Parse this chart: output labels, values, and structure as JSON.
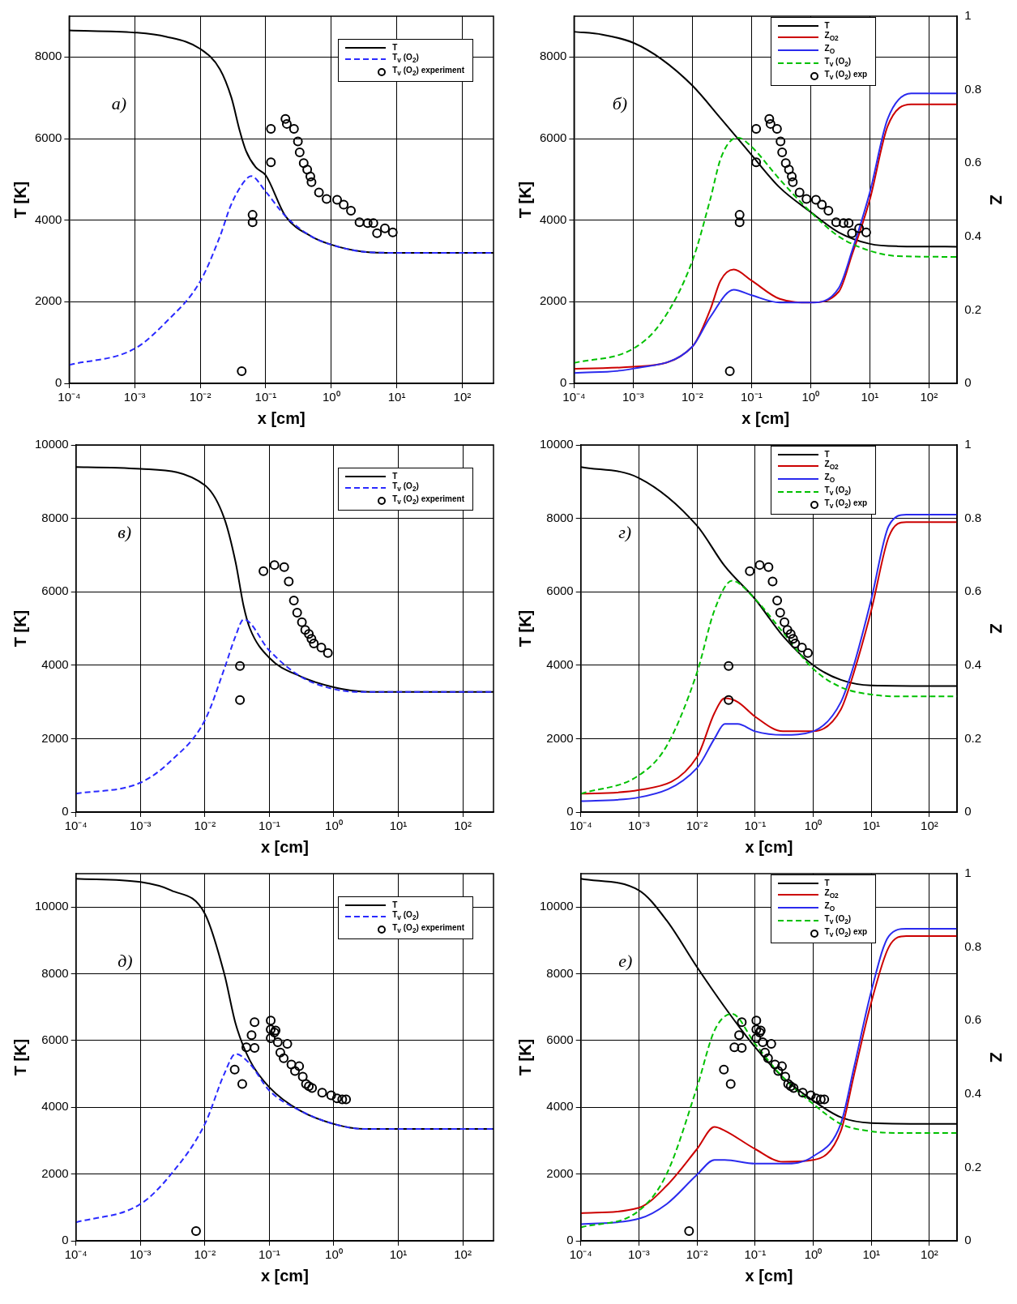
{
  "chart_data": [
    {
      "type": "line",
      "xlabel": "x [cm]",
      "ylabel": "T [K]",
      "log": "x",
      "grid": true,
      "legend": "top right",
      "annotations": [
        "а)"
      ],
      "xlim": [
        0.0001,
        300
      ],
      "xticks": [
        {
          "value": 0.0001,
          "label": "10⁻⁴"
        },
        {
          "value": 0.001,
          "label": "10⁻³"
        },
        {
          "value": 0.01,
          "label": "10⁻²"
        },
        {
          "value": 0.1,
          "label": "10⁻¹"
        },
        {
          "value": 1,
          "label": "10⁰"
        },
        {
          "value": 10,
          "label": "10¹"
        },
        {
          "value": 100,
          "label": "10²"
        }
      ],
      "ylim": [
        0,
        9000
      ],
      "yticks": [
        0,
        2000,
        4000,
        6000,
        8000
      ],
      "series": [
        {
          "name": "T",
          "type": "line",
          "color": "#000000",
          "line_style": "solid",
          "marker": "none",
          "x": [
            0.0001,
            0.001,
            0.003,
            0.01,
            0.02,
            0.03,
            0.04,
            0.05,
            0.07,
            0.1,
            0.2,
            0.5,
            1,
            3,
            10,
            300
          ],
          "values": [
            8650,
            8600,
            8500,
            8200,
            7700,
            7000,
            6200,
            5700,
            5300,
            5100,
            4100,
            3600,
            3400,
            3230,
            3200,
            3200
          ]
        },
        {
          "name": "T$_{v}$ (O$_{2}$)",
          "color": "#2a2aff",
          "line_style": "dashed",
          "marker": "none",
          "x": [
            0.0001,
            0.001,
            0.003,
            0.01,
            0.02,
            0.03,
            0.05,
            0.06,
            0.1,
            0.2,
            0.5,
            1,
            3,
            10,
            300
          ],
          "values": [
            450,
            850,
            1500,
            2500,
            3600,
            4400,
            5000,
            5080,
            4700,
            4100,
            3600,
            3400,
            3230,
            3200,
            3200
          ]
        },
        {
          "name": "T$_{v}$ (O$_{2}$) experiment",
          "type": "scatter",
          "color": "#000000",
          "marker": "circle",
          "x": [
            0.043,
            0.063,
            0.063,
            0.12,
            0.12,
            0.2,
            0.21,
            0.27,
            0.31,
            0.33,
            0.38,
            0.43,
            0.48,
            0.5,
            0.65,
            0.85,
            1.23,
            1.55,
            2.0,
            2.7,
            3.6,
            4.4,
            5.0,
            6.6,
            8.7
          ],
          "values": [
            300,
            4130,
            3950,
            6240,
            5420,
            6480,
            6360,
            6240,
            5930,
            5660,
            5400,
            5240,
            5070,
            4930,
            4680,
            4520,
            4500,
            4380,
            4230,
            3950,
            3930,
            3930,
            3680,
            3800,
            3700
          ]
        }
      ]
    },
    {
      "type": "line",
      "xlabel": "x [cm]",
      "ylabel": "T [K]",
      "y2label": "Z",
      "log": "x",
      "grid": true,
      "legend": "top right",
      "annotations": [
        "б)"
      ],
      "xlim": [
        0.0001,
        300
      ],
      "xticks": [
        {
          "value": 0.0001,
          "label": "10⁻⁴"
        },
        {
          "value": 0.001,
          "label": "10⁻³"
        },
        {
          "value": 0.01,
          "label": "10⁻²"
        },
        {
          "value": 0.1,
          "label": "10⁻¹"
        },
        {
          "value": 1,
          "label": "10⁰"
        },
        {
          "value": 10,
          "label": "10¹"
        },
        {
          "value": 100,
          "label": "10²"
        }
      ],
      "ylim": [
        0,
        9000
      ],
      "yticks": [
        0,
        2000,
        4000,
        6000,
        8000
      ],
      "y2lim": [
        0,
        1
      ],
      "y2ticks": [
        0,
        0.2,
        0.4,
        0.6,
        0.8,
        1
      ],
      "series": [
        {
          "name": "T",
          "color": "#000000",
          "line_style": "solid",
          "marker": "none",
          "x": [
            0.0001,
            0.0003,
            0.001,
            0.003,
            0.01,
            0.03,
            0.1,
            0.3,
            1,
            3,
            10,
            30,
            300
          ],
          "values": [
            8620,
            8550,
            8350,
            7950,
            7300,
            6500,
            5600,
            4800,
            4200,
            3700,
            3420,
            3360,
            3350
          ]
        },
        {
          "name": "Z$_{O2}$",
          "axis": "y2",
          "color": "#cc0000",
          "line_style": "solid",
          "marker": "none",
          "x": [
            0.0001,
            0.001,
            0.01,
            0.02,
            0.03,
            0.05,
            0.1,
            0.3,
            1,
            3,
            5,
            10,
            20,
            50,
            300
          ],
          "values": [
            0.04,
            0.045,
            0.1,
            0.2,
            0.28,
            0.31,
            0.28,
            0.23,
            0.22,
            0.25,
            0.35,
            0.5,
            0.7,
            0.76,
            0.76
          ]
        },
        {
          "name": "Z$_{O}$",
          "axis": "y2",
          "color": "#2a2aee",
          "line_style": "solid",
          "marker": "none",
          "x": [
            0.0001,
            0.001,
            0.01,
            0.02,
            0.05,
            0.1,
            0.3,
            1,
            3,
            5,
            10,
            20,
            50,
            300
          ],
          "values": [
            0.028,
            0.04,
            0.1,
            0.18,
            0.255,
            0.24,
            0.22,
            0.22,
            0.26,
            0.36,
            0.52,
            0.72,
            0.79,
            0.79
          ]
        },
        {
          "name": "T$_{v}$ (O$_{2}$)",
          "color": "#00c000",
          "line_style": "dashed",
          "marker": "none",
          "x": [
            0.0001,
            0.001,
            0.003,
            0.01,
            0.02,
            0.03,
            0.05,
            0.06,
            0.1,
            0.3,
            1,
            3,
            10,
            30,
            300
          ],
          "values": [
            500,
            850,
            1500,
            3000,
            4500,
            5500,
            6000,
            6020,
            5800,
            5000,
            4200,
            3600,
            3250,
            3120,
            3100
          ]
        },
        {
          "name": "T$_{v}$ (O$_{2}$) exp",
          "type": "scatter",
          "color": "#000000",
          "marker": "circle",
          "x": [
            0.043,
            0.063,
            0.063,
            0.12,
            0.12,
            0.2,
            0.21,
            0.27,
            0.31,
            0.33,
            0.38,
            0.43,
            0.48,
            0.5,
            0.65,
            0.85,
            1.23,
            1.55,
            2.0,
            2.7,
            3.6,
            4.4,
            5.0,
            6.6,
            8.7
          ],
          "values": [
            300,
            4130,
            3950,
            6240,
            5420,
            6480,
            6360,
            6240,
            5930,
            5660,
            5400,
            5240,
            5070,
            4930,
            4680,
            4520,
            4500,
            4380,
            4230,
            3950,
            3930,
            3930,
            3680,
            3800,
            3700
          ]
        }
      ]
    },
    {
      "type": "line",
      "xlabel": "x [cm]",
      "ylabel": "T [K]",
      "log": "x",
      "grid": true,
      "legend": "top right",
      "annotations": [
        "в)"
      ],
      "xlim": [
        0.0001,
        300
      ],
      "xticks": [
        {
          "value": 0.0001,
          "label": "10⁻⁴"
        },
        {
          "value": 0.001,
          "label": "10⁻³"
        },
        {
          "value": 0.01,
          "label": "10⁻²"
        },
        {
          "value": 0.1,
          "label": "10⁻¹"
        },
        {
          "value": 1,
          "label": "10⁰"
        },
        {
          "value": 10,
          "label": "10¹"
        },
        {
          "value": 100,
          "label": "10²"
        }
      ],
      "ylim": [
        0,
        10000
      ],
      "yticks": [
        0,
        2000,
        4000,
        6000,
        8000,
        10000
      ],
      "series": [
        {
          "name": "T",
          "color": "#000000",
          "line_style": "solid",
          "marker": "none",
          "x": [
            0.0001,
            0.001,
            0.01,
            0.02,
            0.03,
            0.04,
            0.05,
            0.1,
            0.3,
            1,
            3,
            10,
            300
          ],
          "values": [
            9400,
            9350,
            8900,
            8000,
            6800,
            5600,
            5000,
            4200,
            3700,
            3400,
            3280,
            3270,
            3270
          ]
        },
        {
          "name": "T$_{v}$ (O$_{2}$)",
          "color": "#2a2aff",
          "line_style": "dashed",
          "marker": "none",
          "x": [
            0.0001,
            0.001,
            0.003,
            0.01,
            0.02,
            0.03,
            0.04,
            0.1,
            0.3,
            1,
            3,
            300
          ],
          "values": [
            500,
            800,
            1400,
            2500,
            3900,
            4800,
            5250,
            4400,
            3700,
            3350,
            3270,
            3270
          ]
        },
        {
          "name": "T$_{v}$ (O$_{2}$) experiment",
          "type": "scatter",
          "color": "#000000",
          "marker": "circle",
          "x": [
            0.035,
            0.035,
            0.081,
            0.12,
            0.17,
            0.2,
            0.24,
            0.27,
            0.32,
            0.36,
            0.41,
            0.45,
            0.49,
            0.64,
            0.81
          ],
          "values": [
            3980,
            3050,
            6560,
            6730,
            6670,
            6280,
            5760,
            5430,
            5170,
            4960,
            4850,
            4720,
            4590,
            4480,
            4330
          ]
        }
      ]
    },
    {
      "type": "line",
      "xlabel": "x [cm]",
      "ylabel": "T [K]",
      "y2label": "Z",
      "log": "x",
      "grid": true,
      "legend": "top right",
      "annotations": [
        "г)"
      ],
      "xlim": [
        0.0001,
        300
      ],
      "xticks": [
        {
          "value": 0.0001,
          "label": "10⁻⁴"
        },
        {
          "value": 0.001,
          "label": "10⁻³"
        },
        {
          "value": 0.01,
          "label": "10⁻²"
        },
        {
          "value": 0.1,
          "label": "10⁻¹"
        },
        {
          "value": 1,
          "label": "10⁰"
        },
        {
          "value": 10,
          "label": "10¹"
        },
        {
          "value": 100,
          "label": "10²"
        }
      ],
      "ylim": [
        0,
        10000
      ],
      "yticks": [
        0,
        2000,
        4000,
        6000,
        8000,
        10000
      ],
      "y2lim": [
        0,
        1
      ],
      "y2ticks": [
        0,
        0.2,
        0.4,
        0.6,
        0.8,
        1
      ],
      "series": [
        {
          "name": "T",
          "color": "#000000",
          "line_style": "solid",
          "marker": "none",
          "x": [
            0.0001,
            0.001,
            0.01,
            0.03,
            0.1,
            0.3,
            1,
            3,
            10,
            300
          ],
          "values": [
            9400,
            9100,
            7800,
            6700,
            5800,
            4800,
            4000,
            3600,
            3450,
            3430
          ]
        },
        {
          "name": "Z$_{O2}$",
          "axis": "y2",
          "color": "#cc0000",
          "line_style": "solid",
          "marker": "none",
          "x": [
            0.0001,
            0.001,
            0.01,
            0.02,
            0.03,
            0.05,
            0.1,
            0.3,
            1,
            3,
            5,
            10,
            20,
            40,
            300
          ],
          "values": [
            0.05,
            0.06,
            0.15,
            0.27,
            0.31,
            0.3,
            0.26,
            0.22,
            0.22,
            0.28,
            0.38,
            0.55,
            0.75,
            0.79,
            0.79
          ]
        },
        {
          "name": "Z$_{O}$",
          "axis": "y2",
          "color": "#2a2aee",
          "line_style": "solid",
          "marker": "none",
          "x": [
            0.0001,
            0.001,
            0.01,
            0.02,
            0.03,
            0.05,
            0.1,
            0.3,
            1,
            3,
            5,
            10,
            20,
            40,
            300
          ],
          "values": [
            0.03,
            0.04,
            0.12,
            0.2,
            0.24,
            0.24,
            0.22,
            0.21,
            0.22,
            0.3,
            0.4,
            0.58,
            0.78,
            0.81,
            0.81
          ]
        },
        {
          "name": "T$_{v}$ (O$_{2}$)",
          "color": "#00c000",
          "line_style": "dashed",
          "marker": "none",
          "x": [
            0.0001,
            0.001,
            0.003,
            0.01,
            0.02,
            0.04,
            0.1,
            0.3,
            1,
            3,
            10,
            30,
            300
          ],
          "values": [
            500,
            1000,
            1800,
            3800,
            5500,
            6300,
            5800,
            4900,
            3900,
            3400,
            3200,
            3150,
            3150
          ]
        },
        {
          "name": "T$_{v}$ (O$_{2}$) exp",
          "type": "scatter",
          "color": "#000000",
          "marker": "circle",
          "x": [
            0.035,
            0.035,
            0.081,
            0.12,
            0.17,
            0.2,
            0.24,
            0.27,
            0.32,
            0.36,
            0.41,
            0.45,
            0.49,
            0.64,
            0.81
          ],
          "values": [
            3980,
            3050,
            6560,
            6730,
            6670,
            6280,
            5760,
            5430,
            5170,
            4960,
            4850,
            4720,
            4590,
            4480,
            4330
          ]
        }
      ]
    },
    {
      "type": "line",
      "xlabel": "x [cm]",
      "ylabel": "T [K]",
      "log": "x",
      "grid": true,
      "legend": "top right",
      "annotations": [
        "д)"
      ],
      "xlim": [
        0.0001,
        300
      ],
      "xticks": [
        {
          "value": 0.0001,
          "label": "10⁻⁴"
        },
        {
          "value": 0.001,
          "label": "10⁻³"
        },
        {
          "value": 0.01,
          "label": "10⁻²"
        },
        {
          "value": 0.1,
          "label": "10⁻¹"
        },
        {
          "value": 1,
          "label": "10⁰"
        },
        {
          "value": 10,
          "label": "10¹"
        },
        {
          "value": 100,
          "label": "10²"
        }
      ],
      "ylim": [
        0,
        11000
      ],
      "yticks": [
        0,
        2000,
        4000,
        6000,
        8000,
        10000
      ],
      "series": [
        {
          "name": "T",
          "color": "#000000",
          "line_style": "solid",
          "marker": "none",
          "x": [
            0.0001,
            0.001,
            0.003,
            0.01,
            0.02,
            0.03,
            0.05,
            0.1,
            0.3,
            1,
            3,
            300
          ],
          "values": [
            10850,
            10750,
            10500,
            9800,
            8000,
            6500,
            5400,
            4600,
            3900,
            3500,
            3350,
            3350
          ]
        },
        {
          "name": "T$_{v}$ (O$_{2}$)",
          "color": "#2a2aff",
          "line_style": "dashed",
          "marker": "none",
          "x": [
            0.0001,
            0.001,
            0.003,
            0.01,
            0.02,
            0.03,
            0.05,
            0.1,
            0.3,
            1,
            3,
            300
          ],
          "values": [
            550,
            1100,
            2000,
            3500,
            5000,
            5600,
            5300,
            4500,
            3900,
            3500,
            3350,
            3350
          ]
        },
        {
          "name": "T$_{v}$ (O$_{2}$) experiment",
          "type": "scatter",
          "color": "#000000",
          "marker": "circle",
          "x": [
            0.0073,
            0.029,
            0.038,
            0.044,
            0.053,
            0.059,
            0.059,
            0.105,
            0.105,
            0.105,
            0.12,
            0.125,
            0.135,
            0.148,
            0.167,
            0.19,
            0.22,
            0.25,
            0.29,
            0.33,
            0.37,
            0.41,
            0.46,
            0.66,
            0.91,
            1.12,
            1.35,
            1.55
          ],
          "values": [
            290,
            5130,
            4700,
            5800,
            6160,
            6550,
            5780,
            6600,
            6330,
            6070,
            6240,
            6300,
            5950,
            5640,
            5470,
            5900,
            5280,
            5090,
            5230,
            4920,
            4700,
            4630,
            4580,
            4440,
            4360,
            4270,
            4240,
            4240
          ]
        }
      ]
    },
    {
      "type": "line",
      "xlabel": "x [cm]",
      "ylabel": "T [K]",
      "y2label": "Z",
      "log": "x",
      "grid": true,
      "legend": "top right",
      "annotations": [
        "е)"
      ],
      "xlim": [
        0.0001,
        300
      ],
      "xticks": [
        {
          "value": 0.0001,
          "label": "10⁻⁴"
        },
        {
          "value": 0.001,
          "label": "10⁻³"
        },
        {
          "value": 0.01,
          "label": "10⁻²"
        },
        {
          "value": 0.1,
          "label": "10⁻¹"
        },
        {
          "value": 1,
          "label": "10⁰"
        },
        {
          "value": 10,
          "label": "10¹"
        },
        {
          "value": 100,
          "label": "10²"
        }
      ],
      "ylim": [
        0,
        11000
      ],
      "yticks": [
        0,
        2000,
        4000,
        6000,
        8000,
        10000
      ],
      "y2lim": [
        0,
        1
      ],
      "y2ticks": [
        0,
        0.2,
        0.4,
        0.6,
        0.8,
        1
      ],
      "series": [
        {
          "name": "T",
          "color": "#000000",
          "line_style": "solid",
          "marker": "none",
          "x": [
            0.0001,
            0.001,
            0.003,
            0.01,
            0.03,
            0.1,
            0.3,
            1,
            3,
            10,
            300
          ],
          "values": [
            10850,
            10500,
            9600,
            8200,
            7000,
            5800,
            4900,
            4200,
            3700,
            3530,
            3500
          ]
        },
        {
          "name": "Z$_{O2}$",
          "axis": "y2",
          "color": "#cc0000",
          "line_style": "solid",
          "marker": "none",
          "x": [
            0.0001,
            0.001,
            0.003,
            0.01,
            0.02,
            0.03,
            0.1,
            0.3,
            1,
            3,
            5,
            10,
            20,
            40,
            300
          ],
          "values": [
            0.075,
            0.09,
            0.15,
            0.25,
            0.31,
            0.3,
            0.25,
            0.215,
            0.22,
            0.3,
            0.45,
            0.65,
            0.8,
            0.83,
            0.83
          ]
        },
        {
          "name": "Z$_{O}$",
          "axis": "y2",
          "color": "#2a2aee",
          "line_style": "solid",
          "marker": "none",
          "x": [
            0.0001,
            0.001,
            0.003,
            0.01,
            0.02,
            0.03,
            0.1,
            0.3,
            1,
            3,
            5,
            10,
            20,
            40,
            300
          ],
          "values": [
            0.045,
            0.06,
            0.1,
            0.18,
            0.22,
            0.22,
            0.21,
            0.21,
            0.23,
            0.32,
            0.47,
            0.68,
            0.83,
            0.85,
            0.85
          ]
        },
        {
          "name": "T$_{v}$ (O$_{2}$)",
          "color": "#00c000",
          "line_style": "dashed",
          "marker": "none",
          "x": [
            0.0001,
            0.001,
            0.003,
            0.01,
            0.02,
            0.04,
            0.1,
            0.3,
            1,
            3,
            10,
            30,
            300
          ],
          "values": [
            400,
            900,
            2000,
            4600,
            6300,
            6800,
            5900,
            4900,
            4100,
            3500,
            3280,
            3230,
            3230
          ]
        },
        {
          "name": "T$_{v}$ (O$_{2}$) exp",
          "type": "scatter",
          "color": "#000000",
          "marker": "circle",
          "x": [
            0.0073,
            0.029,
            0.038,
            0.044,
            0.053,
            0.059,
            0.059,
            0.105,
            0.105,
            0.105,
            0.12,
            0.125,
            0.135,
            0.148,
            0.167,
            0.19,
            0.22,
            0.25,
            0.29,
            0.33,
            0.37,
            0.41,
            0.46,
            0.66,
            0.91,
            1.12,
            1.35,
            1.55
          ],
          "values": [
            290,
            5130,
            4700,
            5800,
            6160,
            6550,
            5780,
            6600,
            6330,
            6070,
            6240,
            6300,
            5950,
            5640,
            5470,
            5900,
            5280,
            5090,
            5230,
            4920,
            4700,
            4630,
            4580,
            4440,
            4360,
            4270,
            4240,
            4240
          ]
        }
      ]
    }
  ]
}
